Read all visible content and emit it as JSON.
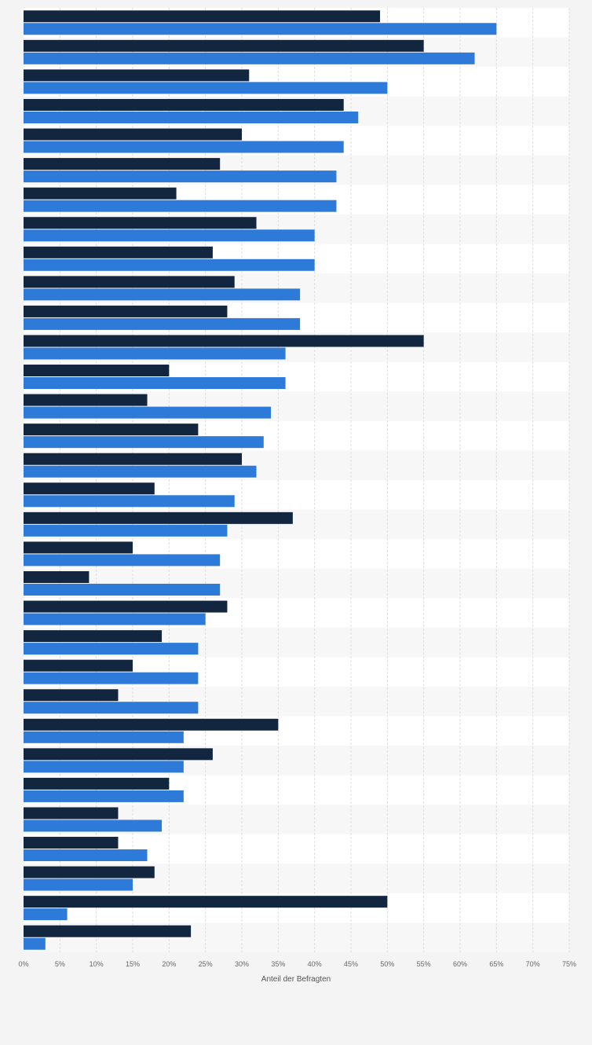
{
  "chart_data": {
    "type": "bar",
    "orientation": "horizontal",
    "xlabel": "Anteil der Befragten",
    "ylabel": "",
    "xlim": [
      0,
      75
    ],
    "x_ticks": [
      0,
      5,
      10,
      15,
      20,
      25,
      30,
      35,
      40,
      45,
      50,
      55,
      60,
      65,
      70,
      75
    ],
    "x_tick_labels": [
      "0%",
      "5%",
      "10%",
      "15%",
      "20%",
      "25%",
      "30%",
      "35%",
      "40%",
      "45%",
      "50%",
      "55%",
      "60%",
      "65%",
      "70%",
      "75%"
    ],
    "grid": "vertical",
    "legend": "none",
    "categories": [
      "",
      "",
      "",
      "",
      "",
      "",
      "",
      "",
      "",
      "",
      "",
      "",
      "",
      "",
      "",
      "",
      "",
      "",
      "",
      "",
      "",
      "",
      "",
      "",
      "",
      "",
      "",
      "",
      "",
      "",
      "",
      ""
    ],
    "series": [
      {
        "color": "#12263f",
        "values": [
          49,
          55,
          31,
          44,
          30,
          27,
          21,
          32,
          26,
          29,
          28,
          55,
          20,
          17,
          24,
          30,
          18,
          37,
          15,
          9,
          28,
          19,
          15,
          13,
          35,
          26,
          20,
          13,
          13,
          18,
          50,
          23
        ]
      },
      {
        "color": "#2e7ad8",
        "values": [
          65,
          62,
          50,
          46,
          44,
          43,
          43,
          40,
          40,
          38,
          38,
          36,
          36,
          34,
          33,
          32,
          29,
          28,
          27,
          27,
          25,
          24,
          24,
          24,
          22,
          22,
          22,
          19,
          17,
          15,
          6,
          3
        ]
      }
    ]
  },
  "colors": {
    "page_background": "#f4f4f4",
    "plot_band_light": "#f7f7f7",
    "plot_band_white": "#ffffff",
    "gridline": "#dddddd"
  }
}
